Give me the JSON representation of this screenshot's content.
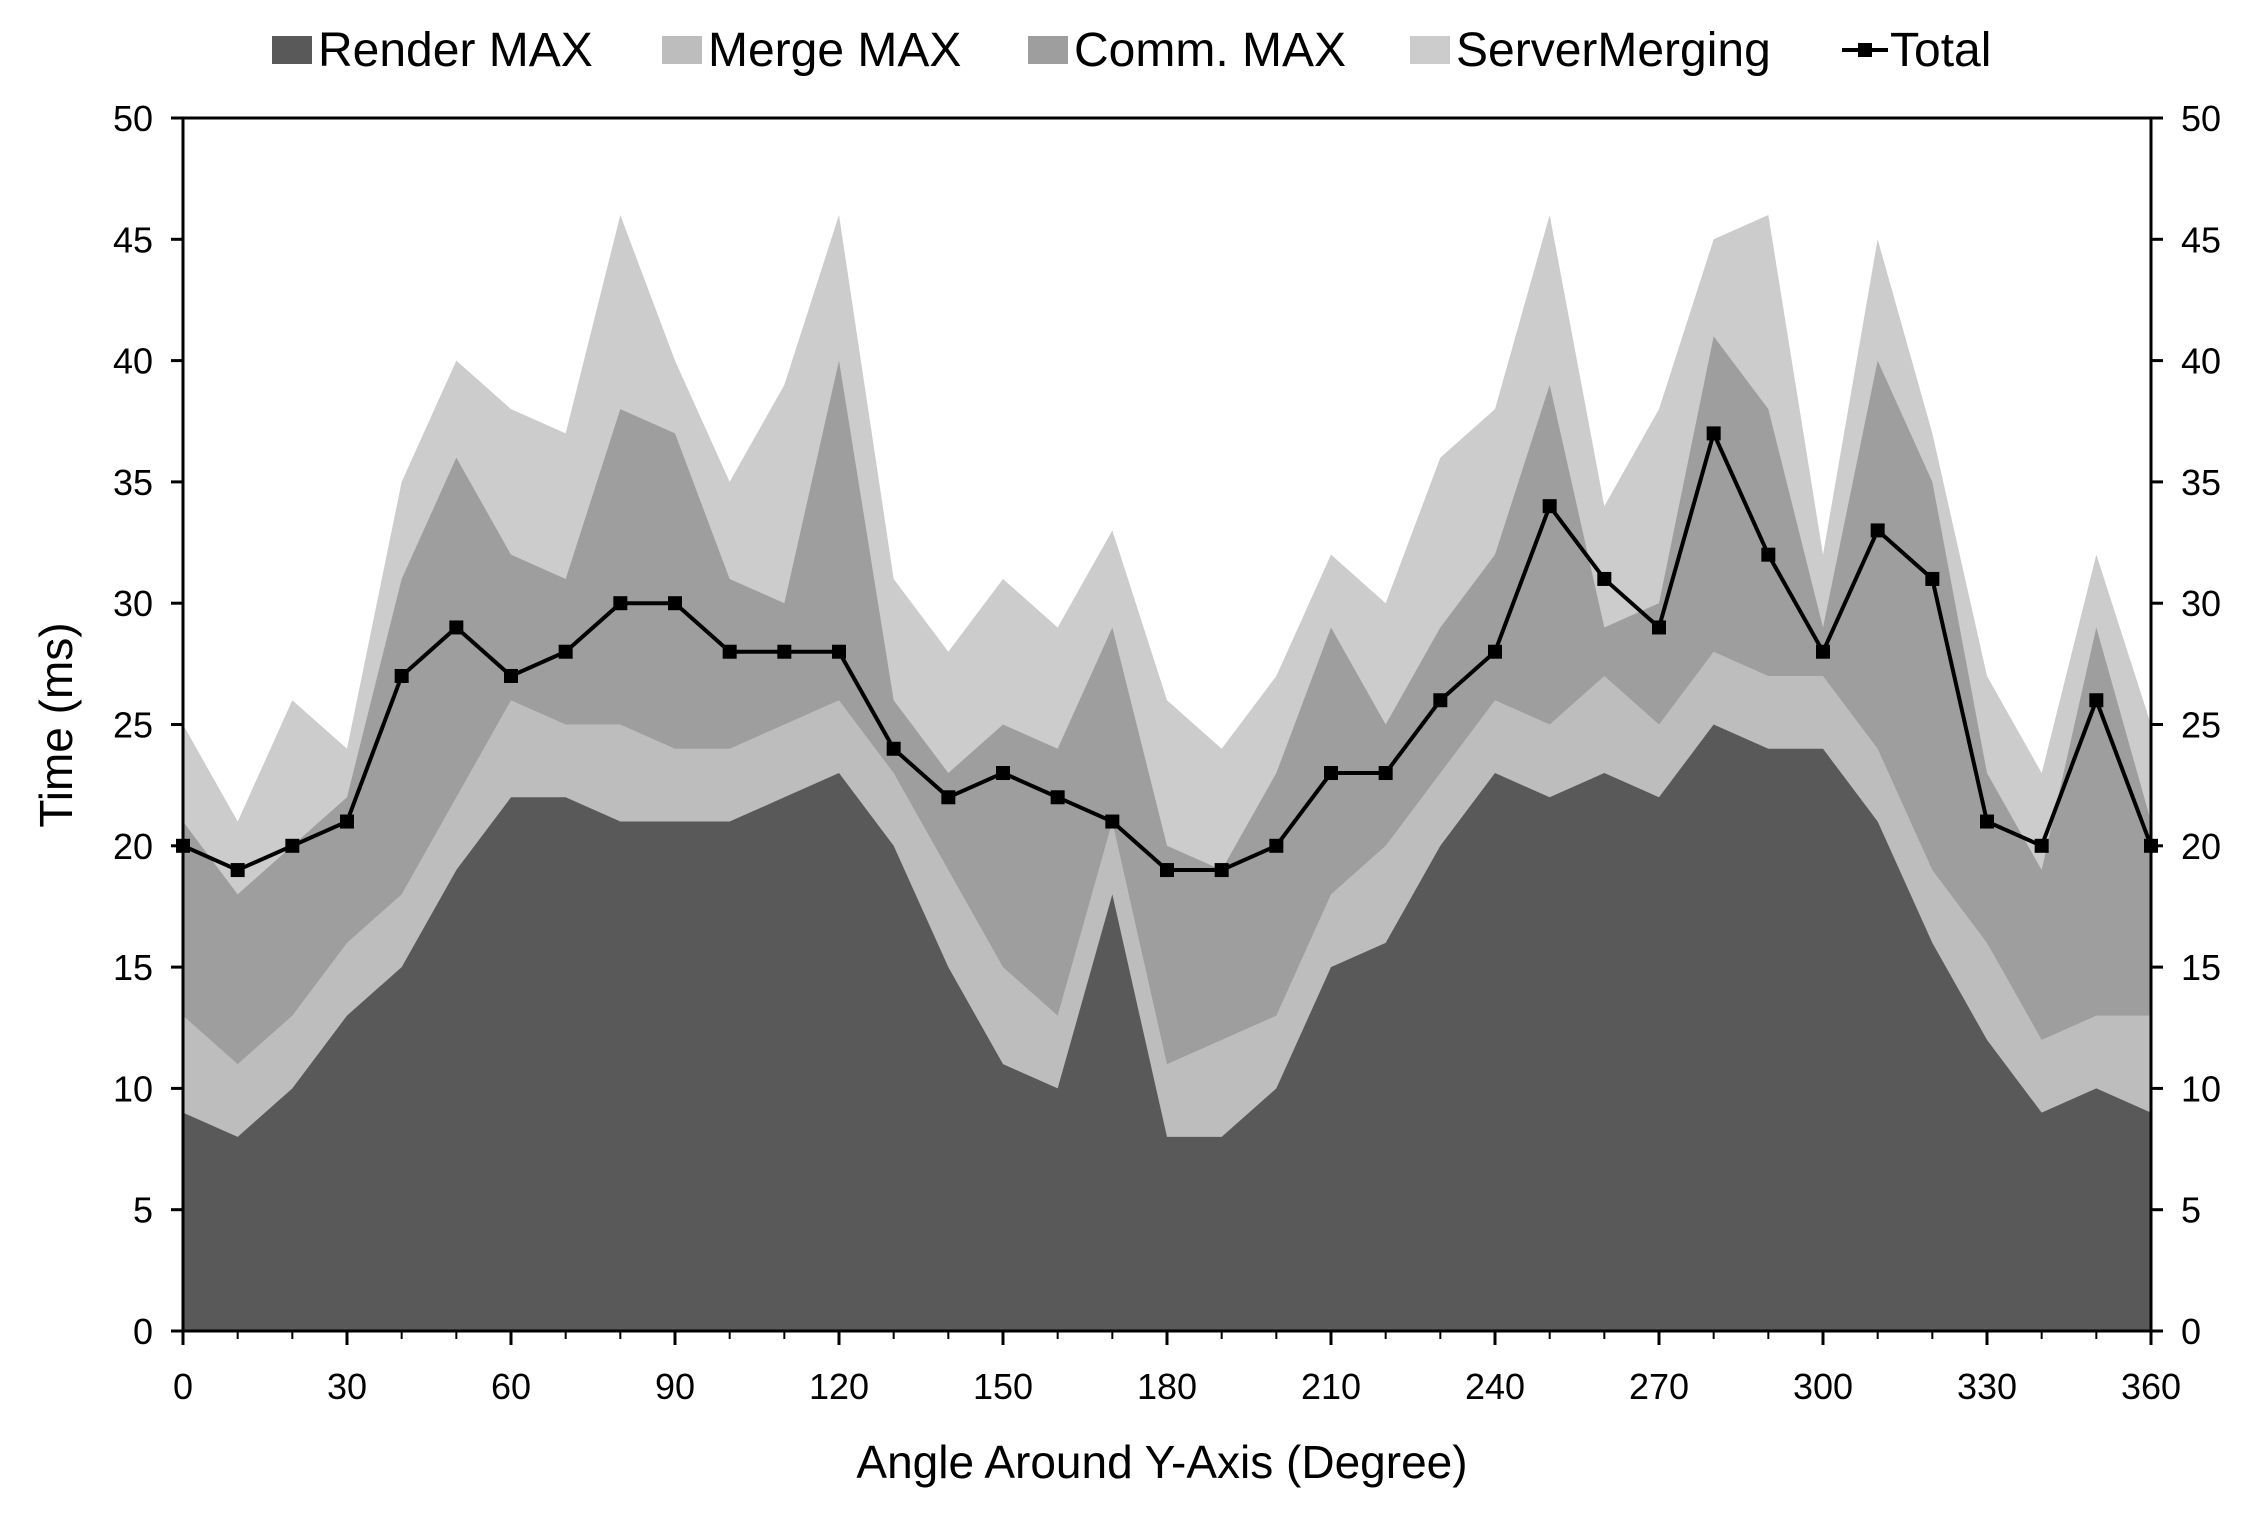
{
  "chart_data": {
    "type": "area",
    "stacked": true,
    "xlabel": "Angle Around Y-Axis (Degree)",
    "ylabel": "Time (ms)",
    "xlim": [
      0,
      360
    ],
    "ylim": [
      0,
      50
    ],
    "x_ticks": [
      0,
      30,
      60,
      90,
      120,
      150,
      180,
      210,
      240,
      270,
      300,
      330,
      360
    ],
    "y_ticks": [
      0,
      5,
      10,
      15,
      20,
      25,
      30,
      35,
      40,
      45,
      50
    ],
    "x": [
      0,
      10,
      20,
      30,
      40,
      50,
      60,
      70,
      80,
      90,
      100,
      110,
      120,
      130,
      140,
      150,
      160,
      170,
      180,
      190,
      200,
      210,
      220,
      230,
      240,
      250,
      260,
      270,
      280,
      290,
      300,
      310,
      320,
      330,
      340,
      350,
      360
    ],
    "series": [
      {
        "name": "Render MAX",
        "color": "#595959",
        "values": [
          9,
          8,
          10,
          13,
          15,
          19,
          22,
          22,
          21,
          21,
          21,
          22,
          23,
          20,
          15,
          11,
          10,
          18,
          8,
          8,
          10,
          15,
          16,
          20,
          23,
          22,
          23,
          22,
          25,
          24,
          24,
          21,
          16,
          12,
          9,
          10,
          9
        ]
      },
      {
        "name": "Merge MAX",
        "color": "#bdbdbd",
        "values": [
          4,
          3,
          3,
          3,
          3,
          3,
          4,
          3,
          4,
          3,
          3,
          3,
          3,
          3,
          4,
          4,
          3,
          3,
          3,
          4,
          3,
          3,
          4,
          3,
          3,
          3,
          4,
          3,
          3,
          3,
          3,
          3,
          3,
          4,
          3,
          3,
          4
        ]
      },
      {
        "name": "Comm. MAX",
        "color": "#9e9e9e",
        "values": [
          8,
          7,
          7,
          6,
          13,
          14,
          6,
          6,
          13,
          13,
          7,
          5,
          14,
          3,
          4,
          10,
          11,
          8,
          9,
          7,
          10,
          11,
          5,
          6,
          6,
          14,
          2,
          5,
          13,
          11,
          2,
          16,
          16,
          7,
          7,
          16,
          8
        ]
      },
      {
        "name": "ServerMerging",
        "color": "#cccccc",
        "values": [
          4,
          3,
          6,
          2,
          4,
          4,
          6,
          6,
          8,
          3,
          4,
          9,
          6,
          5,
          5,
          6,
          5,
          4,
          6,
          5,
          4,
          3,
          5,
          7,
          6,
          7,
          5,
          8,
          4,
          8,
          3,
          5,
          2,
          4,
          4,
          3,
          4
        ]
      }
    ],
    "total": {
      "name": "Total",
      "color": "#000000",
      "values": [
        20,
        19,
        20,
        21,
        27,
        29,
        27,
        28,
        30,
        30,
        28,
        28,
        28,
        24,
        22,
        23,
        22,
        21,
        19,
        19,
        20,
        23,
        23,
        26,
        28,
        34,
        31,
        29,
        37,
        32,
        28,
        33,
        31,
        21,
        20,
        26,
        20
      ]
    }
  }
}
